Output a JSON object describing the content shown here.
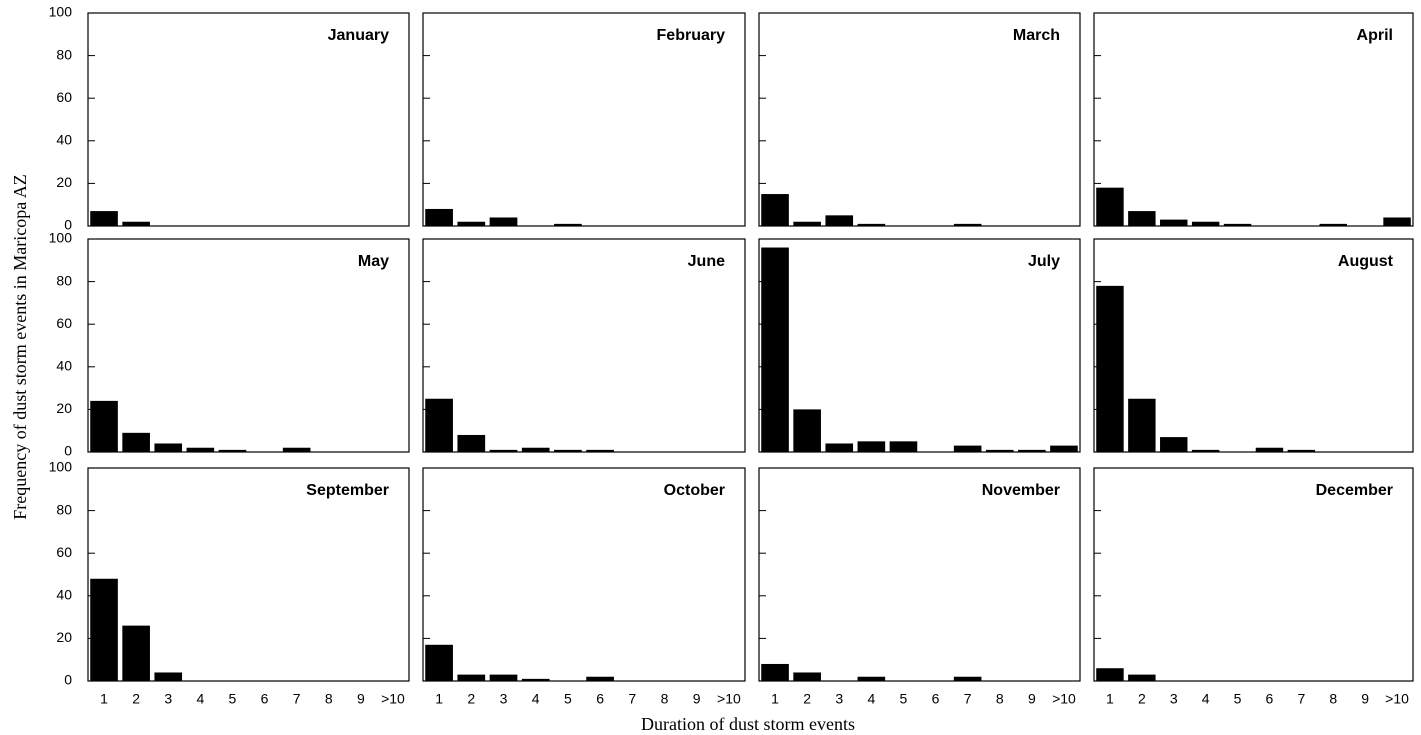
{
  "ylabel": "Frequency of dust storm events  in Maricopa AZ",
  "xlabel": "Duration of dust storm events",
  "chart_data": [
    {
      "type": "bar",
      "title": "January",
      "categories": [
        null,
        null,
        null,
        null,
        null,
        null,
        null,
        null,
        null,
        null
      ],
      "values": [
        7,
        2,
        0,
        0,
        0,
        0,
        0,
        0,
        0,
        0
      ],
      "color": "#000000",
      "ylim": [
        0,
        100
      ],
      "yticks": [
        0,
        20,
        40,
        60,
        80,
        100
      ],
      "show_ytick_labels": true
    },
    {
      "type": "bar",
      "title": "February",
      "categories": [
        null,
        null,
        null,
        null,
        null,
        null,
        null,
        null,
        null,
        null
      ],
      "values": [
        8,
        2,
        4,
        0,
        1,
        0,
        0,
        0,
        0,
        0
      ],
      "color": "#000000",
      "ylim": [
        0,
        100
      ],
      "yticks": [
        0,
        20,
        40,
        60,
        80,
        100
      ],
      "show_ytick_labels": false
    },
    {
      "type": "bar",
      "title": "March",
      "categories": [
        null,
        null,
        null,
        null,
        null,
        null,
        null,
        null,
        null,
        null
      ],
      "values": [
        15,
        2,
        5,
        1,
        0,
        0,
        1,
        0,
        0,
        0
      ],
      "color": "#000000",
      "ylim": [
        0,
        100
      ],
      "yticks": [
        0,
        20,
        40,
        60,
        80,
        100
      ],
      "show_ytick_labels": false
    },
    {
      "type": "bar",
      "title": "April",
      "categories": [
        null,
        null,
        null,
        null,
        null,
        null,
        null,
        null,
        null,
        null
      ],
      "values": [
        18,
        7,
        3,
        2,
        1,
        0,
        0,
        1,
        0,
        4
      ],
      "color": "#000000",
      "ylim": [
        0,
        100
      ],
      "yticks": [
        0,
        20,
        40,
        60,
        80,
        100
      ],
      "show_ytick_labels": false
    },
    {
      "type": "bar",
      "title": "May",
      "categories": [
        null,
        null,
        null,
        null,
        null,
        null,
        null,
        null,
        null,
        null
      ],
      "values": [
        24,
        9,
        4,
        2,
        1,
        0,
        2,
        0,
        0,
        0
      ],
      "color": "#000000",
      "ylim": [
        0,
        100
      ],
      "yticks": [
        0,
        20,
        40,
        60,
        80,
        100
      ],
      "show_ytick_labels": true
    },
    {
      "type": "bar",
      "title": "June",
      "categories": [
        null,
        null,
        null,
        null,
        null,
        null,
        null,
        null,
        null,
        null
      ],
      "values": [
        25,
        8,
        1,
        2,
        1,
        1,
        0,
        0,
        0,
        0
      ],
      "color": "#000000",
      "ylim": [
        0,
        100
      ],
      "yticks": [
        0,
        20,
        40,
        60,
        80,
        100
      ],
      "show_ytick_labels": false
    },
    {
      "type": "bar",
      "title": "July",
      "categories": [
        null,
        null,
        null,
        null,
        null,
        null,
        null,
        null,
        null,
        null
      ],
      "values": [
        96,
        20,
        4,
        5,
        5,
        0,
        3,
        1,
        1,
        3
      ],
      "color": "#000000",
      "ylim": [
        0,
        100
      ],
      "yticks": [
        0,
        20,
        40,
        60,
        80,
        100
      ],
      "show_ytick_labels": false
    },
    {
      "type": "bar",
      "title": "August",
      "categories": [
        null,
        null,
        null,
        null,
        null,
        null,
        null,
        null,
        null,
        null
      ],
      "values": [
        78,
        25,
        7,
        1,
        0,
        2,
        1,
        0,
        0,
        0
      ],
      "color": "#000000",
      "ylim": [
        0,
        100
      ],
      "yticks": [
        0,
        20,
        40,
        60,
        80,
        100
      ],
      "show_ytick_labels": false
    },
    {
      "type": "bar",
      "title": "September",
      "categories": [
        "1",
        "2",
        "3",
        "4",
        "5",
        "6",
        "7",
        "8",
        "9",
        ">10"
      ],
      "values": [
        48,
        26,
        4,
        0,
        0,
        0,
        0,
        0,
        0,
        0
      ],
      "color": "#000000",
      "ylim": [
        0,
        100
      ],
      "yticks": [
        0,
        20,
        40,
        60,
        80,
        100
      ],
      "show_ytick_labels": true
    },
    {
      "type": "bar",
      "title": "October",
      "categories": [
        "1",
        "2",
        "3",
        "4",
        "5",
        "6",
        "7",
        "8",
        "9",
        ">10"
      ],
      "values": [
        17,
        3,
        3,
        1,
        0,
        2,
        0,
        0,
        0,
        0
      ],
      "color": "#000000",
      "ylim": [
        0,
        100
      ],
      "yticks": [
        0,
        20,
        40,
        60,
        80,
        100
      ],
      "show_ytick_labels": false
    },
    {
      "type": "bar",
      "title": "November",
      "categories": [
        "1",
        "2",
        "3",
        "4",
        "5",
        "6",
        "7",
        "8",
        "9",
        ">10"
      ],
      "values": [
        8,
        4,
        0,
        2,
        0,
        0,
        2,
        0,
        0,
        0
      ],
      "color": "#000000",
      "ylim": [
        0,
        100
      ],
      "yticks": [
        0,
        20,
        40,
        60,
        80,
        100
      ],
      "show_ytick_labels": false
    },
    {
      "type": "bar",
      "title": "December",
      "categories": [
        "1",
        "2",
        "3",
        "4",
        "5",
        "6",
        "7",
        "8",
        "9",
        ">10"
      ],
      "values": [
        6,
        3,
        0,
        0,
        0,
        0,
        0,
        0,
        0,
        0
      ],
      "color": "#000000",
      "ylim": [
        0,
        100
      ],
      "yticks": [
        0,
        20,
        40,
        60,
        80,
        100
      ],
      "show_ytick_labels": false
    }
  ]
}
